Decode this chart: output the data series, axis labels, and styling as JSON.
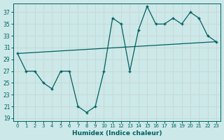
{
  "xlabel": "Humidex (Indice chaleur)",
  "bg_color": "#cce8e8",
  "grid_color": "#c8d8d8",
  "line_color": "#006060",
  "xlim": [
    -0.5,
    23.5
  ],
  "ylim": [
    18.5,
    38.5
  ],
  "xticks": [
    0,
    1,
    2,
    3,
    4,
    5,
    6,
    7,
    8,
    9,
    10,
    11,
    12,
    13,
    14,
    15,
    16,
    17,
    18,
    19,
    20,
    21,
    22,
    23
  ],
  "yticks": [
    19,
    21,
    23,
    25,
    27,
    29,
    31,
    33,
    35,
    37
  ],
  "series1_x": [
    0,
    1,
    2,
    3,
    4,
    5,
    6,
    7,
    8,
    9,
    10,
    11,
    12,
    13,
    14,
    15,
    16,
    17,
    18,
    19,
    20,
    21,
    22,
    23
  ],
  "series1_y": [
    30,
    27,
    27,
    25,
    24,
    27,
    27,
    21,
    20,
    21,
    27,
    36,
    35,
    27,
    34,
    38,
    35,
    35,
    36,
    35,
    37,
    36,
    33,
    32
  ],
  "series2_x": [
    0,
    23
  ],
  "series2_y": [
    30,
    32
  ]
}
